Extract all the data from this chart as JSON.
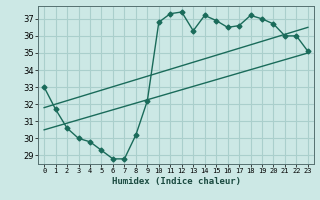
{
  "title": "",
  "xlabel": "Humidex (Indice chaleur)",
  "ylabel": "",
  "bg_color": "#cce8e5",
  "grid_color": "#aacfcc",
  "line_color": "#1a6b5a",
  "marker": "D",
  "markersize": 2.5,
  "linewidth": 1.0,
  "xlim": [
    -0.5,
    23.5
  ],
  "ylim": [
    28.5,
    37.75
  ],
  "xticks": [
    0,
    1,
    2,
    3,
    4,
    5,
    6,
    7,
    8,
    9,
    10,
    11,
    12,
    13,
    14,
    15,
    16,
    17,
    18,
    19,
    20,
    21,
    22,
    23
  ],
  "yticks": [
    29,
    30,
    31,
    32,
    33,
    34,
    35,
    36,
    37
  ],
  "series": [
    {
      "x": [
        0,
        1,
        2,
        3,
        4,
        5,
        6,
        7,
        8,
        9,
        10,
        11,
        12,
        13,
        14,
        15,
        16,
        17,
        18,
        19,
        20,
        21,
        22,
        23
      ],
      "y": [
        33.0,
        31.7,
        30.6,
        30.0,
        29.8,
        29.3,
        28.8,
        28.8,
        30.2,
        32.2,
        36.8,
        37.3,
        37.4,
        36.3,
        37.2,
        36.9,
        36.5,
        36.6,
        37.2,
        37.0,
        36.7,
        36.0,
        36.0,
        35.1
      ],
      "has_markers": true
    },
    {
      "x": [
        0,
        23
      ],
      "y": [
        31.8,
        36.5
      ],
      "has_markers": false
    },
    {
      "x": [
        0,
        23
      ],
      "y": [
        30.5,
        35.0
      ],
      "has_markers": false
    }
  ]
}
